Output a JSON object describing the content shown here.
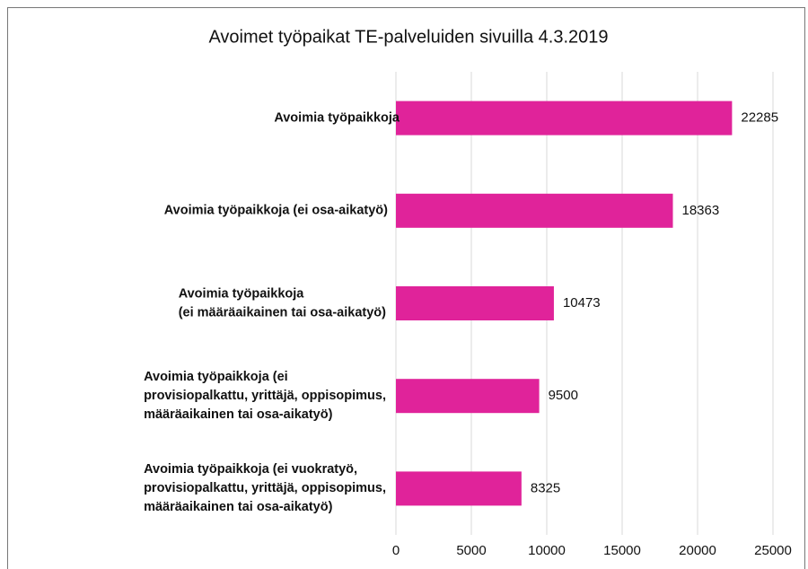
{
  "chart_data": {
    "type": "bar",
    "orientation": "horizontal",
    "title": "Avoimet työpaikat TE-palveluiden sivuilla 4.3.2019",
    "categories": [
      [
        "Avoimia työpaikkoja"
      ],
      [
        "Avoimia työpaikkoja (ei osa-aikatyö)"
      ],
      [
        "Avoimia työpaikkoja",
        "(ei määräaikainen tai osa-aikatyö)"
      ],
      [
        "Avoimia työpaikkoja (ei",
        "provisiopalkattu, yrittäjä, oppisopimus,",
        "määräaikainen tai osa-aikatyö)"
      ],
      [
        "Avoimia työpaikkoja (ei vuokratyö,",
        "provisiopalkattu, yrittäjä, oppisopimus,",
        "määräaikainen tai osa-aikatyö)"
      ]
    ],
    "values": [
      22285,
      18363,
      10473,
      9500,
      8325
    ],
    "color": "#e0239a",
    "xlim": [
      0,
      25000
    ],
    "xticks": [
      0,
      5000,
      10000,
      15000,
      20000,
      25000
    ],
    "grid": true
  }
}
